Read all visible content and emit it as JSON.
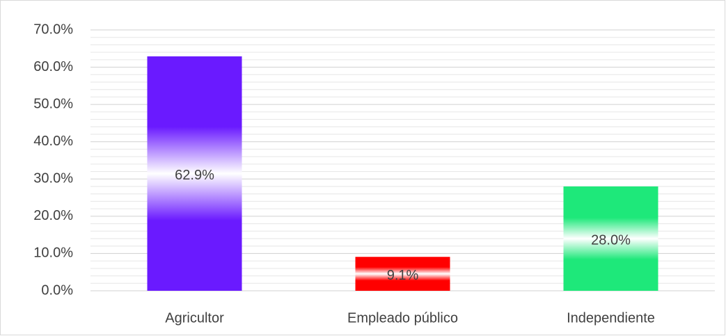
{
  "chart_data": {
    "type": "bar",
    "categories": [
      "Agricultor",
      "Empleado público",
      "Independiente"
    ],
    "values": [
      62.9,
      9.1,
      28.0
    ],
    "value_labels": [
      "62.9%",
      "9.1%",
      "28.0%"
    ],
    "colors": [
      "#6a1aff",
      "#ff0000",
      "#1ee87a"
    ],
    "ylim": [
      0,
      70
    ],
    "yticks": [
      {
        "value": 0,
        "label": "0.0%"
      },
      {
        "value": 10,
        "label": "10.0%"
      },
      {
        "value": 20,
        "label": "20.0%"
      },
      {
        "value": 30,
        "label": "30.0%"
      },
      {
        "value": 40,
        "label": "40.0%"
      },
      {
        "value": 50,
        "label": "50.0%"
      },
      {
        "value": 60,
        "label": "60.0%"
      },
      {
        "value": 70,
        "label": "70.0%"
      }
    ],
    "minor_yticks": [
      2,
      4,
      6,
      8,
      12,
      14,
      16,
      18,
      22,
      24,
      26,
      28,
      32,
      34,
      36,
      38,
      42,
      44,
      46,
      48,
      52,
      54,
      56,
      58,
      62,
      64,
      66,
      68
    ],
    "grid": true
  }
}
